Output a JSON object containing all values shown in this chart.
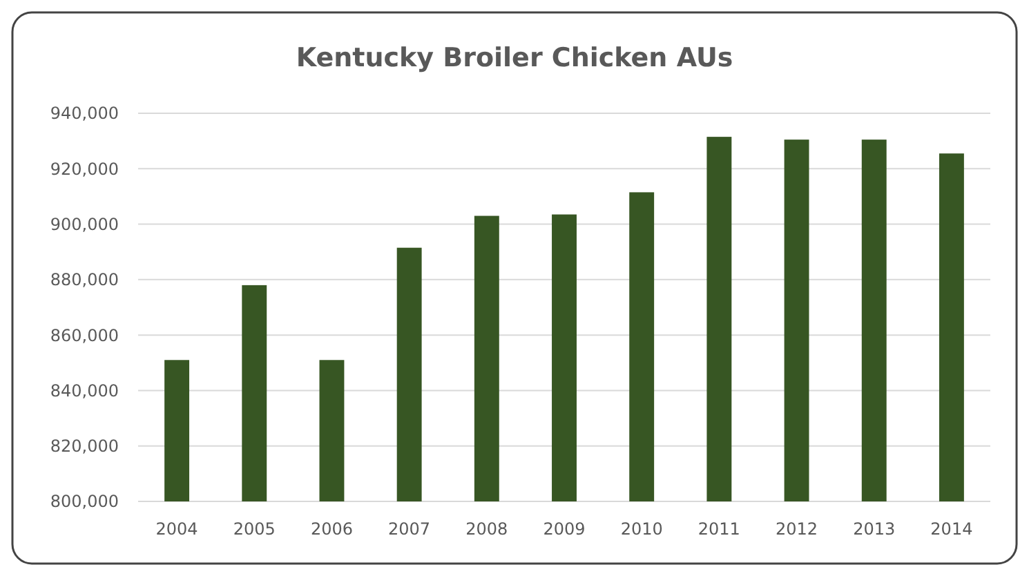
{
  "chart_data": {
    "type": "bar",
    "title": "Kentucky Broiler Chicken AUs",
    "categories": [
      "2004",
      "2005",
      "2006",
      "2007",
      "2008",
      "2009",
      "2010",
      "2011",
      "2012",
      "2013",
      "2014"
    ],
    "values": [
      851000,
      878000,
      851000,
      891500,
      903000,
      903500,
      911500,
      931500,
      930500,
      930500,
      925500
    ],
    "color": "#375623",
    "ylim": [
      800000,
      940000
    ],
    "yticks": [
      {
        "value": 800000,
        "label": "800,000"
      },
      {
        "value": 820000,
        "label": "820,000"
      },
      {
        "value": 840000,
        "label": "840,000"
      },
      {
        "value": 860000,
        "label": "860,000"
      },
      {
        "value": 880000,
        "label": "880,000"
      },
      {
        "value": 900000,
        "label": "900,000"
      },
      {
        "value": 920000,
        "label": "920,000"
      },
      {
        "value": 940000,
        "label": "940,000"
      }
    ],
    "grid": "y"
  }
}
